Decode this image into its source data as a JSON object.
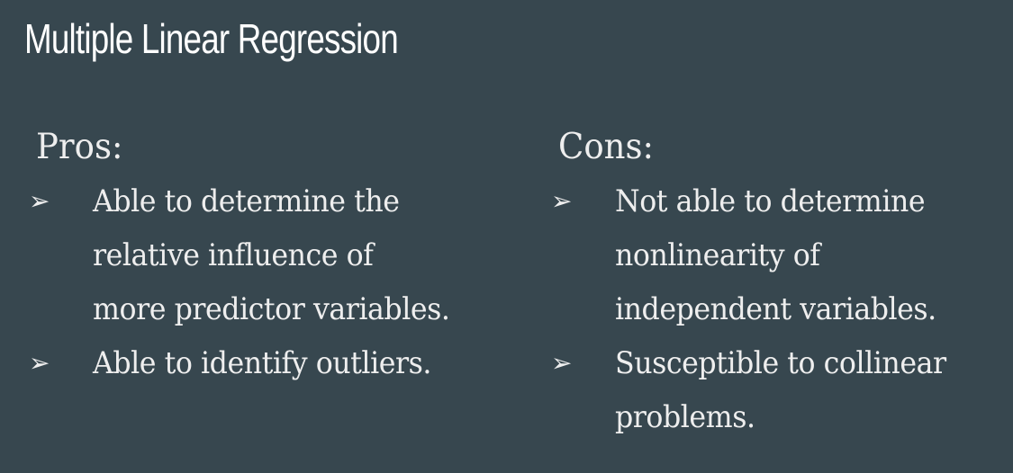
{
  "slide": {
    "title": "Multiple Linear Regression",
    "background_color": "#37474f",
    "text_color": "#eeeeee",
    "bullet_icon": "arrowhead-bullet-icon"
  },
  "pros": {
    "heading": "Pros:",
    "items": [
      {
        "lines": [
          "Able to determine the",
          "relative influence of",
          "more predictor variables."
        ]
      },
      {
        "lines": [
          "Able to identify outliers."
        ]
      }
    ]
  },
  "cons": {
    "heading": "Cons:",
    "items": [
      {
        "lines": [
          "Not able to determine",
          "nonlinearity of",
          "independent variables."
        ]
      },
      {
        "lines": [
          "Susceptible to collinear",
          "problems."
        ]
      }
    ]
  }
}
